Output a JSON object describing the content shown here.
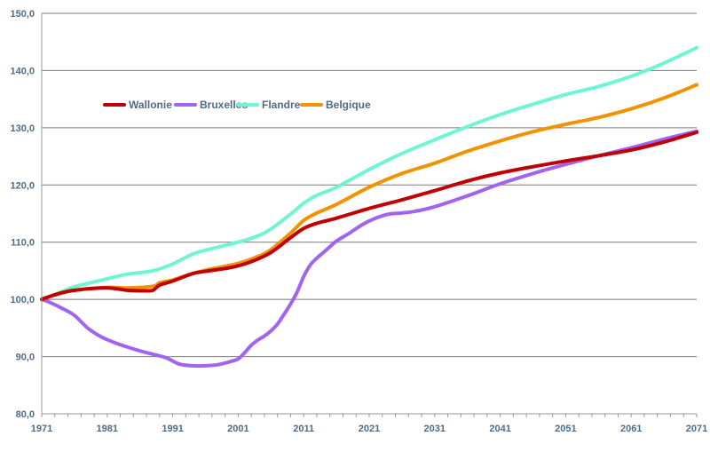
{
  "chart_data": {
    "type": "line",
    "title": "",
    "xlabel": "",
    "ylabel": "",
    "xlim": [
      1971,
      2071
    ],
    "ylim": [
      80,
      150
    ],
    "grid": true,
    "legend_position": "top-left",
    "y_ticks": [
      "80,0",
      "90,0",
      "100,0",
      "110,0",
      "120,0",
      "130,0",
      "140,0",
      "150,0"
    ],
    "x_ticks": [
      "1971",
      "1981",
      "1991",
      "2001",
      "2011",
      "2021",
      "2031",
      "2041",
      "2051",
      "2061",
      "2071"
    ],
    "series": [
      {
        "name": "Wallonie",
        "color": "#c00000",
        "points": [
          [
            1971,
            100.0
          ],
          [
            1973,
            100.8
          ],
          [
            1976,
            101.6
          ],
          [
            1981,
            102.0
          ],
          [
            1984,
            101.6
          ],
          [
            1987,
            101.5
          ],
          [
            1988,
            101.6
          ],
          [
            1989,
            102.5
          ],
          [
            1991,
            103.2
          ],
          [
            1994,
            104.5
          ],
          [
            1996,
            104.9
          ],
          [
            2000,
            105.6
          ],
          [
            2003,
            106.6
          ],
          [
            2006,
            108.2
          ],
          [
            2009,
            110.8
          ],
          [
            2011,
            112.4
          ],
          [
            2013,
            113.3
          ],
          [
            2016,
            114.2
          ],
          [
            2021,
            115.9
          ],
          [
            2026,
            117.4
          ],
          [
            2031,
            119.0
          ],
          [
            2036,
            120.7
          ],
          [
            2041,
            122.1
          ],
          [
            2046,
            123.2
          ],
          [
            2051,
            124.2
          ],
          [
            2056,
            125.1
          ],
          [
            2061,
            126.1
          ],
          [
            2066,
            127.5
          ],
          [
            2071,
            129.2
          ]
        ]
      },
      {
        "name": "Bruxelles",
        "color": "#a064f0",
        "points": [
          [
            1971,
            100.0
          ],
          [
            1972,
            99.6
          ],
          [
            1974,
            98.5
          ],
          [
            1976,
            97.2
          ],
          [
            1978,
            95.0
          ],
          [
            1980,
            93.5
          ],
          [
            1982,
            92.5
          ],
          [
            1984,
            91.7
          ],
          [
            1986,
            91.0
          ],
          [
            1988,
            90.4
          ],
          [
            1990,
            89.8
          ],
          [
            1992,
            88.7
          ],
          [
            1994,
            88.4
          ],
          [
            1996,
            88.4
          ],
          [
            1998,
            88.6
          ],
          [
            2000,
            89.2
          ],
          [
            2001,
            89.6
          ],
          [
            2002,
            90.7
          ],
          [
            2003,
            92.0
          ],
          [
            2004,
            92.9
          ],
          [
            2005,
            93.6
          ],
          [
            2006,
            94.5
          ],
          [
            2007,
            95.7
          ],
          [
            2008,
            97.4
          ],
          [
            2009,
            99.2
          ],
          [
            2010,
            101.3
          ],
          [
            2011,
            104.0
          ],
          [
            2012,
            106.0
          ],
          [
            2013,
            107.2
          ],
          [
            2014,
            108.2
          ],
          [
            2015,
            109.2
          ],
          [
            2016,
            110.2
          ],
          [
            2018,
            111.6
          ],
          [
            2020,
            113.1
          ],
          [
            2022,
            114.2
          ],
          [
            2024,
            114.9
          ],
          [
            2026,
            115.1
          ],
          [
            2028,
            115.4
          ],
          [
            2031,
            116.2
          ],
          [
            2036,
            118.1
          ],
          [
            2041,
            120.2
          ],
          [
            2046,
            122.0
          ],
          [
            2051,
            123.6
          ],
          [
            2056,
            125.1
          ],
          [
            2061,
            126.5
          ],
          [
            2066,
            128.0
          ],
          [
            2071,
            129.4
          ]
        ]
      },
      {
        "name": "Flandre",
        "color": "#6ff5d2",
        "points": [
          [
            1971,
            100.0
          ],
          [
            1974,
            101.3
          ],
          [
            1976,
            102.2
          ],
          [
            1981,
            103.6
          ],
          [
            1984,
            104.4
          ],
          [
            1988,
            105.0
          ],
          [
            1991,
            106.2
          ],
          [
            1994,
            107.9
          ],
          [
            1996,
            108.6
          ],
          [
            2001,
            110.0
          ],
          [
            2004,
            111.1
          ],
          [
            2006,
            112.3
          ],
          [
            2009,
            114.9
          ],
          [
            2011,
            116.8
          ],
          [
            2013,
            118.2
          ],
          [
            2016,
            119.6
          ],
          [
            2021,
            122.7
          ],
          [
            2026,
            125.5
          ],
          [
            2031,
            127.9
          ],
          [
            2036,
            130.2
          ],
          [
            2041,
            132.3
          ],
          [
            2046,
            134.1
          ],
          [
            2051,
            135.8
          ],
          [
            2056,
            137.2
          ],
          [
            2061,
            139.0
          ],
          [
            2066,
            141.3
          ],
          [
            2071,
            144.0
          ]
        ]
      },
      {
        "name": "Belgique",
        "color": "#f39200",
        "points": [
          [
            1971,
            100.0
          ],
          [
            1974,
            101.2
          ],
          [
            1976,
            101.6
          ],
          [
            1981,
            102.1
          ],
          [
            1984,
            102.0
          ],
          [
            1988,
            102.3
          ],
          [
            1989,
            102.9
          ],
          [
            1991,
            103.4
          ],
          [
            1994,
            104.5
          ],
          [
            1996,
            105.1
          ],
          [
            2001,
            106.3
          ],
          [
            2004,
            107.5
          ],
          [
            2006,
            108.7
          ],
          [
            2009,
            111.6
          ],
          [
            2011,
            113.8
          ],
          [
            2013,
            115.1
          ],
          [
            2016,
            116.6
          ],
          [
            2021,
            119.6
          ],
          [
            2026,
            122.0
          ],
          [
            2031,
            123.8
          ],
          [
            2036,
            125.9
          ],
          [
            2041,
            127.7
          ],
          [
            2046,
            129.3
          ],
          [
            2051,
            130.6
          ],
          [
            2056,
            131.8
          ],
          [
            2061,
            133.3
          ],
          [
            2066,
            135.2
          ],
          [
            2071,
            137.5
          ]
        ]
      }
    ]
  }
}
